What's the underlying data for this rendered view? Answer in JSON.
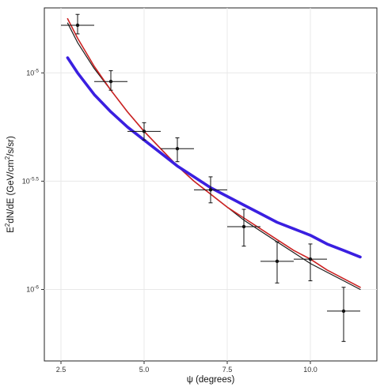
{
  "chart_data": {
    "type": "scatter",
    "title": "",
    "xlabel": "ψ (degrees)",
    "ylabel_parts": [
      "E",
      "2",
      "dN/dE (GeV/cm",
      "2",
      "/s/sr)"
    ],
    "xlim": [
      2.0,
      12.0
    ],
    "ylim_log10": [
      -6.33,
      -4.7
    ],
    "log_y": true,
    "grid": true,
    "x_ticks": [
      {
        "value": 2.5,
        "label": "2.5"
      },
      {
        "value": 5.0,
        "label": "5.0"
      },
      {
        "value": 7.5,
        "label": "7.5"
      },
      {
        "value": 10.0,
        "label": "10.0"
      }
    ],
    "y_ticks": [
      {
        "log10": -5.0,
        "base": "10",
        "exp": "-5"
      },
      {
        "log10": -5.5,
        "base": "10",
        "exp": "-5.5"
      },
      {
        "log10": -6.0,
        "base": "10",
        "exp": "-6"
      }
    ],
    "data_points": [
      {
        "x": 3.0,
        "x_err": 0.5,
        "log10_y": -4.78,
        "log10_y_lo": -4.82,
        "log10_y_hi": -4.73
      },
      {
        "x": 4.0,
        "x_err": 0.5,
        "log10_y": -5.04,
        "log10_y_lo": -5.08,
        "log10_y_hi": -4.99
      },
      {
        "x": 5.0,
        "x_err": 0.5,
        "log10_y": -5.27,
        "log10_y_lo": -5.31,
        "log10_y_hi": -5.23
      },
      {
        "x": 6.0,
        "x_err": 0.5,
        "log10_y": -5.35,
        "log10_y_lo": -5.41,
        "log10_y_hi": -5.3
      },
      {
        "x": 7.0,
        "x_err": 0.5,
        "log10_y": -5.54,
        "log10_y_lo": -5.6,
        "log10_y_hi": -5.48
      },
      {
        "x": 8.0,
        "x_err": 0.5,
        "log10_y": -5.71,
        "log10_y_lo": -5.8,
        "log10_y_hi": -5.63
      },
      {
        "x": 9.0,
        "x_err": 0.5,
        "log10_y": -5.87,
        "log10_y_lo": -5.97,
        "log10_y_hi": -5.78
      },
      {
        "x": 10.0,
        "x_err": 0.5,
        "log10_y": -5.86,
        "log10_y_lo": -5.96,
        "log10_y_hi": -5.79
      },
      {
        "x": 11.0,
        "x_err": 0.5,
        "log10_y": -6.1,
        "log10_y_lo": -6.24,
        "log10_y_hi": -5.99
      }
    ],
    "series": [
      {
        "color": "#1a1a1a",
        "width": 1.2,
        "x": [
          2.7,
          3.0,
          3.5,
          4.0,
          4.5,
          5.0,
          5.5,
          6.0,
          6.5,
          7.0,
          7.5,
          8.0,
          8.5,
          9.0,
          9.5,
          10.0,
          10.5,
          11.0,
          11.5
        ],
        "log10_y": [
          -4.77,
          -4.86,
          -4.98,
          -5.08,
          -5.18,
          -5.27,
          -5.35,
          -5.43,
          -5.5,
          -5.56,
          -5.62,
          -5.68,
          -5.73,
          -5.78,
          -5.83,
          -5.88,
          -5.92,
          -5.96,
          -6.0
        ]
      },
      {
        "color": "#cc2222",
        "width": 1.6,
        "x": [
          2.7,
          3.0,
          3.5,
          4.0,
          4.5,
          5.0,
          5.5,
          6.0,
          6.5,
          7.0,
          7.5,
          8.0,
          8.5,
          9.0,
          9.5,
          10.0,
          10.5,
          11.0,
          11.5
        ],
        "log10_y": [
          -4.75,
          -4.84,
          -4.97,
          -5.08,
          -5.18,
          -5.27,
          -5.35,
          -5.43,
          -5.5,
          -5.56,
          -5.62,
          -5.67,
          -5.72,
          -5.77,
          -5.82,
          -5.86,
          -5.91,
          -5.95,
          -5.99
        ]
      },
      {
        "color": "#3a1fe0",
        "width": 3.6,
        "x": [
          2.7,
          3.0,
          3.5,
          4.0,
          4.5,
          5.0,
          5.5,
          6.0,
          6.5,
          7.0,
          7.5,
          8.0,
          8.5,
          9.0,
          9.5,
          10.0,
          10.5,
          11.0,
          11.5
        ],
        "log10_y": [
          -4.93,
          -5.0,
          -5.1,
          -5.18,
          -5.25,
          -5.31,
          -5.37,
          -5.43,
          -5.48,
          -5.53,
          -5.57,
          -5.61,
          -5.65,
          -5.69,
          -5.72,
          -5.75,
          -5.79,
          -5.82,
          -5.85
        ]
      }
    ]
  }
}
